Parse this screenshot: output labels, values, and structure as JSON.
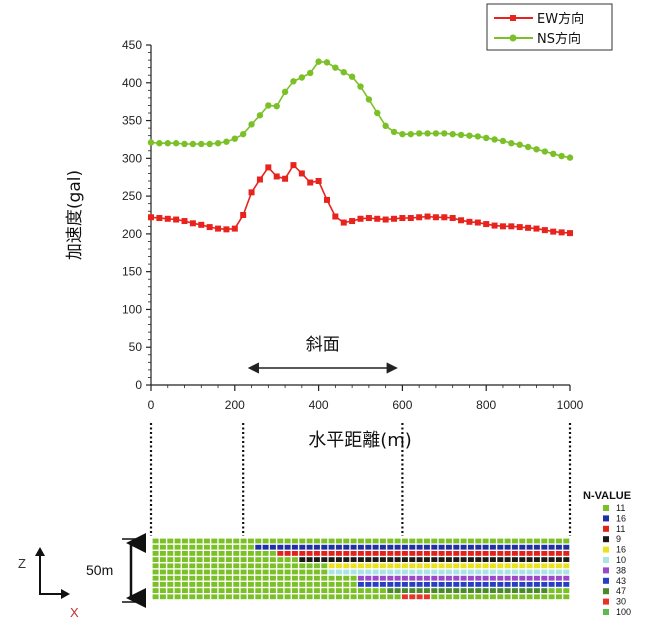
{
  "chart_data": {
    "type": "line",
    "xlabel": "水平距離(m)",
    "ylabel": "加速度(gal)",
    "xlim": [
      0,
      1000
    ],
    "ylim": [
      0,
      450
    ],
    "x_ticks": [
      "0",
      "200",
      "400",
      "600",
      "800",
      "1000"
    ],
    "y_ticks": [
      "0",
      "50",
      "100",
      "150",
      "200",
      "250",
      "300",
      "350",
      "400",
      "450"
    ],
    "legend_position": "top-right",
    "series": [
      {
        "name": "EW方向",
        "color": "#e8231d",
        "marker": "square",
        "x": [
          0,
          20,
          40,
          60,
          80,
          100,
          120,
          140,
          160,
          180,
          200,
          220,
          240,
          260,
          280,
          300,
          320,
          340,
          360,
          380,
          400,
          420,
          440,
          460,
          480,
          500,
          520,
          540,
          560,
          580,
          600,
          620,
          640,
          660,
          680,
          700,
          720,
          740,
          760,
          780,
          800,
          820,
          840,
          860,
          880,
          900,
          920,
          940,
          960,
          980,
          1000
        ],
        "y": [
          222,
          221,
          220,
          219,
          217,
          214,
          212,
          209,
          207,
          206,
          207,
          225,
          255,
          272,
          288,
          276,
          273,
          291,
          280,
          268,
          270,
          245,
          223,
          215,
          217,
          220,
          221,
          220,
          219,
          220,
          221,
          221,
          222,
          223,
          222,
          222,
          221,
          218,
          216,
          215,
          213,
          211,
          210,
          210,
          209,
          208,
          207,
          205,
          203,
          202,
          201
        ]
      },
      {
        "name": "NS方向",
        "color": "#7cc028",
        "marker": "circle",
        "x": [
          0,
          20,
          40,
          60,
          80,
          100,
          120,
          140,
          160,
          180,
          200,
          220,
          240,
          260,
          280,
          300,
          320,
          340,
          360,
          380,
          400,
          420,
          440,
          460,
          480,
          500,
          520,
          540,
          560,
          580,
          600,
          620,
          640,
          660,
          680,
          700,
          720,
          740,
          760,
          780,
          800,
          820,
          840,
          860,
          880,
          900,
          920,
          940,
          960,
          980,
          1000
        ],
        "y": [
          321,
          320,
          320,
          320,
          319,
          319,
          319,
          319,
          320,
          322,
          326,
          332,
          345,
          357,
          370,
          369,
          388,
          402,
          407,
          413,
          428,
          427,
          420,
          414,
          408,
          395,
          378,
          360,
          343,
          335,
          332,
          332,
          333,
          333,
          333,
          333,
          332,
          331,
          330,
          329,
          327,
          325,
          323,
          320,
          318,
          315,
          312,
          309,
          306,
          303,
          301
        ]
      }
    ],
    "annotations": [
      {
        "text": "斜面",
        "x_from": 220,
        "x_to": 600
      }
    ],
    "profile": {
      "legend_title": "N-VALUE",
      "legend": [
        {
          "label": "11",
          "color": "#7cc028"
        },
        {
          "label": "16",
          "color": "#1e2fa8"
        },
        {
          "label": "11",
          "color": "#e0231a"
        },
        {
          "label": "9",
          "color": "#1a1a1a"
        },
        {
          "label": "16",
          "color": "#ece11a"
        },
        {
          "label": "10",
          "color": "#a8e6e6"
        },
        {
          "label": "38",
          "color": "#9b48c9"
        },
        {
          "label": "43",
          "color": "#2540c5"
        },
        {
          "label": "47",
          "color": "#4a8a2a"
        },
        {
          "label": "30",
          "color": "#e8332b"
        },
        {
          "label": "100",
          "color": "#5cbb4a"
        }
      ],
      "depth_label": "50m",
      "axis_z": "Z",
      "axis_x": "X"
    }
  }
}
